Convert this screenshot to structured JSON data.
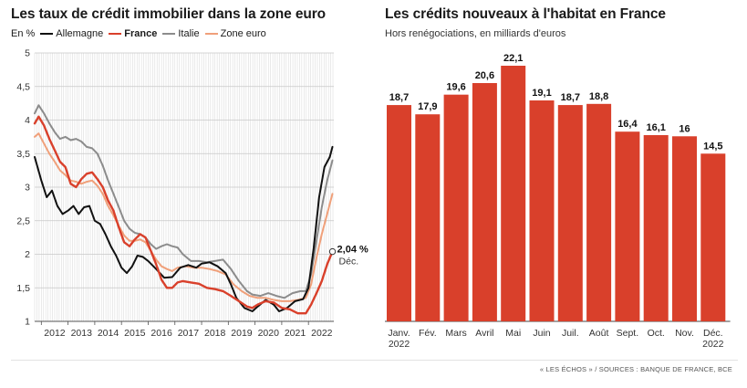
{
  "left": {
    "title": "Les taux de crédit immobilier dans la zone euro",
    "unit": "En %",
    "annotation_value": "2,04 %",
    "annotation_month": "Déc."
  },
  "right": {
    "title": "Les crédits nouveaux à l'habitat en France",
    "subtitle": "Hors renégociations, en milliards d'euros"
  },
  "source": "« LES ÉCHOS » / SOURCES : BANQUE DE FRANCE, BCE",
  "colors": {
    "germany": "#111111",
    "france": "#d9402b",
    "italy": "#8c8c8c",
    "eurozone": "#f0a07a",
    "bar": "#d9402b"
  },
  "chart_data": [
    {
      "type": "line",
      "title": "Les taux de crédit immobilier dans la zone euro",
      "ylabel": "En %",
      "ylim": [
        1,
        5
      ],
      "yticks": [
        1,
        1.5,
        2,
        2.5,
        3,
        3.5,
        4,
        4.5,
        5
      ],
      "ytick_labels": [
        "1",
        "1,5",
        "2",
        "2,5",
        "3",
        "3,5",
        "4",
        "4,5",
        "5"
      ],
      "xlim": [
        2011.75,
        2022.95
      ],
      "xticks": [
        2012,
        2013,
        2014,
        2015,
        2016,
        2017,
        2018,
        2019,
        2020,
        2021,
        2022
      ],
      "grid": true,
      "legend": "top-left",
      "series": [
        {
          "name": "Allemagne",
          "color": "#111111",
          "points": [
            [
              2011.75,
              3.45
            ],
            [
              2012.0,
              3.1
            ],
            [
              2012.2,
              2.85
            ],
            [
              2012.4,
              2.95
            ],
            [
              2012.6,
              2.72
            ],
            [
              2012.8,
              2.6
            ],
            [
              2013.0,
              2.65
            ],
            [
              2013.2,
              2.72
            ],
            [
              2013.4,
              2.6
            ],
            [
              2013.6,
              2.7
            ],
            [
              2013.8,
              2.72
            ],
            [
              2014.0,
              2.5
            ],
            [
              2014.2,
              2.45
            ],
            [
              2014.4,
              2.3
            ],
            [
              2014.6,
              2.12
            ],
            [
              2014.8,
              1.98
            ],
            [
              2015.0,
              1.8
            ],
            [
              2015.2,
              1.72
            ],
            [
              2015.4,
              1.82
            ],
            [
              2015.6,
              1.98
            ],
            [
              2015.8,
              1.96
            ],
            [
              2016.0,
              1.9
            ],
            [
              2016.3,
              1.78
            ],
            [
              2016.6,
              1.65
            ],
            [
              2016.9,
              1.66
            ],
            [
              2017.2,
              1.8
            ],
            [
              2017.5,
              1.84
            ],
            [
              2017.8,
              1.8
            ],
            [
              2018.0,
              1.86
            ],
            [
              2018.3,
              1.88
            ],
            [
              2018.6,
              1.82
            ],
            [
              2018.9,
              1.72
            ],
            [
              2019.1,
              1.55
            ],
            [
              2019.3,
              1.35
            ],
            [
              2019.6,
              1.2
            ],
            [
              2019.9,
              1.15
            ],
            [
              2020.1,
              1.22
            ],
            [
              2020.4,
              1.32
            ],
            [
              2020.7,
              1.25
            ],
            [
              2020.9,
              1.15
            ],
            [
              2021.2,
              1.2
            ],
            [
              2021.5,
              1.3
            ],
            [
              2021.8,
              1.33
            ],
            [
              2022.0,
              1.5
            ],
            [
              2022.2,
              2.1
            ],
            [
              2022.4,
              2.85
            ],
            [
              2022.6,
              3.3
            ],
            [
              2022.8,
              3.45
            ],
            [
              2022.9,
              3.6
            ]
          ]
        },
        {
          "name": "France",
          "color": "#d9402b",
          "points": [
            [
              2011.75,
              3.95
            ],
            [
              2011.9,
              4.05
            ],
            [
              2012.1,
              3.92
            ],
            [
              2012.3,
              3.72
            ],
            [
              2012.5,
              3.55
            ],
            [
              2012.7,
              3.38
            ],
            [
              2012.9,
              3.3
            ],
            [
              2013.1,
              3.05
            ],
            [
              2013.3,
              3.0
            ],
            [
              2013.5,
              3.12
            ],
            [
              2013.7,
              3.2
            ],
            [
              2013.9,
              3.22
            ],
            [
              2014.1,
              3.12
            ],
            [
              2014.3,
              3.0
            ],
            [
              2014.5,
              2.8
            ],
            [
              2014.7,
              2.65
            ],
            [
              2014.9,
              2.4
            ],
            [
              2015.1,
              2.18
            ],
            [
              2015.3,
              2.12
            ],
            [
              2015.5,
              2.22
            ],
            [
              2015.7,
              2.3
            ],
            [
              2015.9,
              2.25
            ],
            [
              2016.1,
              2.05
            ],
            [
              2016.3,
              1.85
            ],
            [
              2016.5,
              1.62
            ],
            [
              2016.7,
              1.5
            ],
            [
              2016.9,
              1.5
            ],
            [
              2017.1,
              1.58
            ],
            [
              2017.3,
              1.6
            ],
            [
              2017.6,
              1.58
            ],
            [
              2017.9,
              1.56
            ],
            [
              2018.2,
              1.5
            ],
            [
              2018.5,
              1.48
            ],
            [
              2018.8,
              1.45
            ],
            [
              2019.1,
              1.38
            ],
            [
              2019.4,
              1.3
            ],
            [
              2019.7,
              1.22
            ],
            [
              2019.9,
              1.2
            ],
            [
              2020.1,
              1.25
            ],
            [
              2020.4,
              1.3
            ],
            [
              2020.7,
              1.28
            ],
            [
              2021.0,
              1.2
            ],
            [
              2021.3,
              1.18
            ],
            [
              2021.6,
              1.12
            ],
            [
              2021.9,
              1.12
            ],
            [
              2022.1,
              1.25
            ],
            [
              2022.3,
              1.42
            ],
            [
              2022.5,
              1.6
            ],
            [
              2022.7,
              1.85
            ],
            [
              2022.9,
              2.04
            ]
          ]
        },
        {
          "name": "Italie",
          "color": "#8c8c8c",
          "points": [
            [
              2011.75,
              4.1
            ],
            [
              2011.9,
              4.22
            ],
            [
              2012.1,
              4.1
            ],
            [
              2012.3,
              3.95
            ],
            [
              2012.5,
              3.82
            ],
            [
              2012.7,
              3.72
            ],
            [
              2012.9,
              3.75
            ],
            [
              2013.1,
              3.7
            ],
            [
              2013.3,
              3.72
            ],
            [
              2013.5,
              3.68
            ],
            [
              2013.7,
              3.6
            ],
            [
              2013.9,
              3.58
            ],
            [
              2014.1,
              3.5
            ],
            [
              2014.3,
              3.32
            ],
            [
              2014.5,
              3.1
            ],
            [
              2014.7,
              2.9
            ],
            [
              2014.9,
              2.7
            ],
            [
              2015.1,
              2.5
            ],
            [
              2015.3,
              2.38
            ],
            [
              2015.5,
              2.32
            ],
            [
              2015.7,
              2.3
            ],
            [
              2015.9,
              2.25
            ],
            [
              2016.1,
              2.15
            ],
            [
              2016.3,
              2.08
            ],
            [
              2016.5,
              2.12
            ],
            [
              2016.7,
              2.15
            ],
            [
              2016.9,
              2.12
            ],
            [
              2017.1,
              2.1
            ],
            [
              2017.3,
              2.0
            ],
            [
              2017.6,
              1.9
            ],
            [
              2017.9,
              1.9
            ],
            [
              2018.2,
              1.88
            ],
            [
              2018.5,
              1.9
            ],
            [
              2018.8,
              1.92
            ],
            [
              2019.1,
              1.78
            ],
            [
              2019.4,
              1.6
            ],
            [
              2019.7,
              1.45
            ],
            [
              2019.9,
              1.4
            ],
            [
              2020.2,
              1.38
            ],
            [
              2020.5,
              1.42
            ],
            [
              2020.8,
              1.38
            ],
            [
              2021.1,
              1.35
            ],
            [
              2021.4,
              1.42
            ],
            [
              2021.7,
              1.45
            ],
            [
              2021.9,
              1.45
            ],
            [
              2022.1,
              1.7
            ],
            [
              2022.3,
              2.2
            ],
            [
              2022.5,
              2.7
            ],
            [
              2022.7,
              3.1
            ],
            [
              2022.9,
              3.4
            ]
          ]
        },
        {
          "name": "Zone euro",
          "color": "#f0a07a",
          "points": [
            [
              2011.75,
              3.75
            ],
            [
              2011.9,
              3.8
            ],
            [
              2012.1,
              3.65
            ],
            [
              2012.3,
              3.5
            ],
            [
              2012.5,
              3.38
            ],
            [
              2012.7,
              3.25
            ],
            [
              2012.9,
              3.18
            ],
            [
              2013.1,
              3.1
            ],
            [
              2013.3,
              3.08
            ],
            [
              2013.5,
              3.05
            ],
            [
              2013.7,
              3.08
            ],
            [
              2013.9,
              3.1
            ],
            [
              2014.1,
              3.02
            ],
            [
              2014.3,
              2.9
            ],
            [
              2014.5,
              2.72
            ],
            [
              2014.7,
              2.58
            ],
            [
              2014.9,
              2.42
            ],
            [
              2015.1,
              2.28
            ],
            [
              2015.3,
              2.2
            ],
            [
              2015.5,
              2.2
            ],
            [
              2015.7,
              2.22
            ],
            [
              2015.9,
              2.18
            ],
            [
              2016.1,
              2.05
            ],
            [
              2016.3,
              1.92
            ],
            [
              2016.5,
              1.82
            ],
            [
              2016.7,
              1.78
            ],
            [
              2016.9,
              1.75
            ],
            [
              2017.1,
              1.8
            ],
            [
              2017.4,
              1.82
            ],
            [
              2017.7,
              1.8
            ],
            [
              2018.0,
              1.8
            ],
            [
              2018.3,
              1.78
            ],
            [
              2018.6,
              1.75
            ],
            [
              2018.9,
              1.7
            ],
            [
              2019.2,
              1.55
            ],
            [
              2019.5,
              1.45
            ],
            [
              2019.8,
              1.38
            ],
            [
              2020.1,
              1.35
            ],
            [
              2020.4,
              1.35
            ],
            [
              2020.7,
              1.32
            ],
            [
              2021.0,
              1.3
            ],
            [
              2021.3,
              1.3
            ],
            [
              2021.6,
              1.32
            ],
            [
              2021.9,
              1.35
            ],
            [
              2022.1,
              1.55
            ],
            [
              2022.3,
              1.95
            ],
            [
              2022.5,
              2.3
            ],
            [
              2022.7,
              2.6
            ],
            [
              2022.9,
              2.9
            ]
          ]
        }
      ]
    },
    {
      "type": "bar",
      "title": "Les crédits nouveaux à l'habitat en France",
      "subtitle": "Hors renégociations, en milliards d'euros",
      "categories": [
        "Janv. 2022",
        "Fév.",
        "Mars",
        "Avril",
        "Mai",
        "Juin",
        "Juil.",
        "Août",
        "Sept.",
        "Oct.",
        "Nov.",
        "Déc. 2022"
      ],
      "category_labels": [
        [
          "Janv.",
          "2022"
        ],
        [
          "Fév."
        ],
        [
          "Mars"
        ],
        [
          "Avril"
        ],
        [
          "Mai"
        ],
        [
          "Juin"
        ],
        [
          "Juil."
        ],
        [
          "Août"
        ],
        [
          "Sept."
        ],
        [
          "Oct."
        ],
        [
          "Nov."
        ],
        [
          "Déc.",
          "2022"
        ]
      ],
      "values": [
        18.7,
        17.9,
        19.6,
        20.6,
        22.1,
        19.1,
        18.7,
        18.8,
        16.4,
        16.1,
        16,
        14.5
      ],
      "value_labels": [
        "18,7",
        "17,9",
        "19,6",
        "20,6",
        "22,1",
        "19,1",
        "18,7",
        "18,8",
        "16,4",
        "16,1",
        "16",
        "14,5"
      ],
      "ylim": [
        0,
        22.1
      ]
    }
  ]
}
